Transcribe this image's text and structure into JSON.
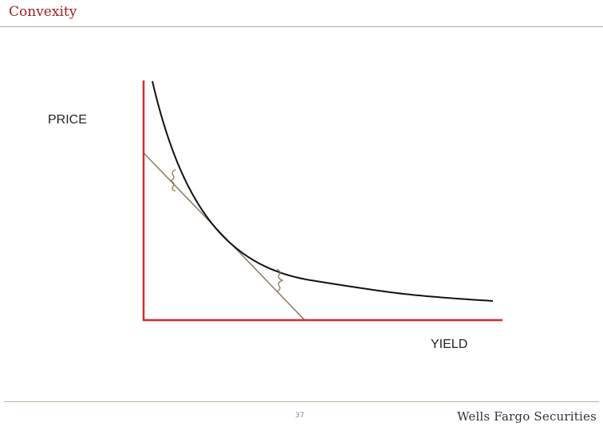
{
  "slide": {
    "title": "Convexity",
    "page_number": "37",
    "brand": "Wells Fargo Securities"
  },
  "diagram": {
    "y_axis_label": "PRICE",
    "x_axis_label": "YIELD",
    "colors": {
      "axes": "#d42a2a",
      "price_curve": "#111111",
      "tangent_line": "#8a7a5a",
      "braces": "#8a7a5a",
      "title": "#a11c1c",
      "rules": "#b7b49c"
    }
  }
}
